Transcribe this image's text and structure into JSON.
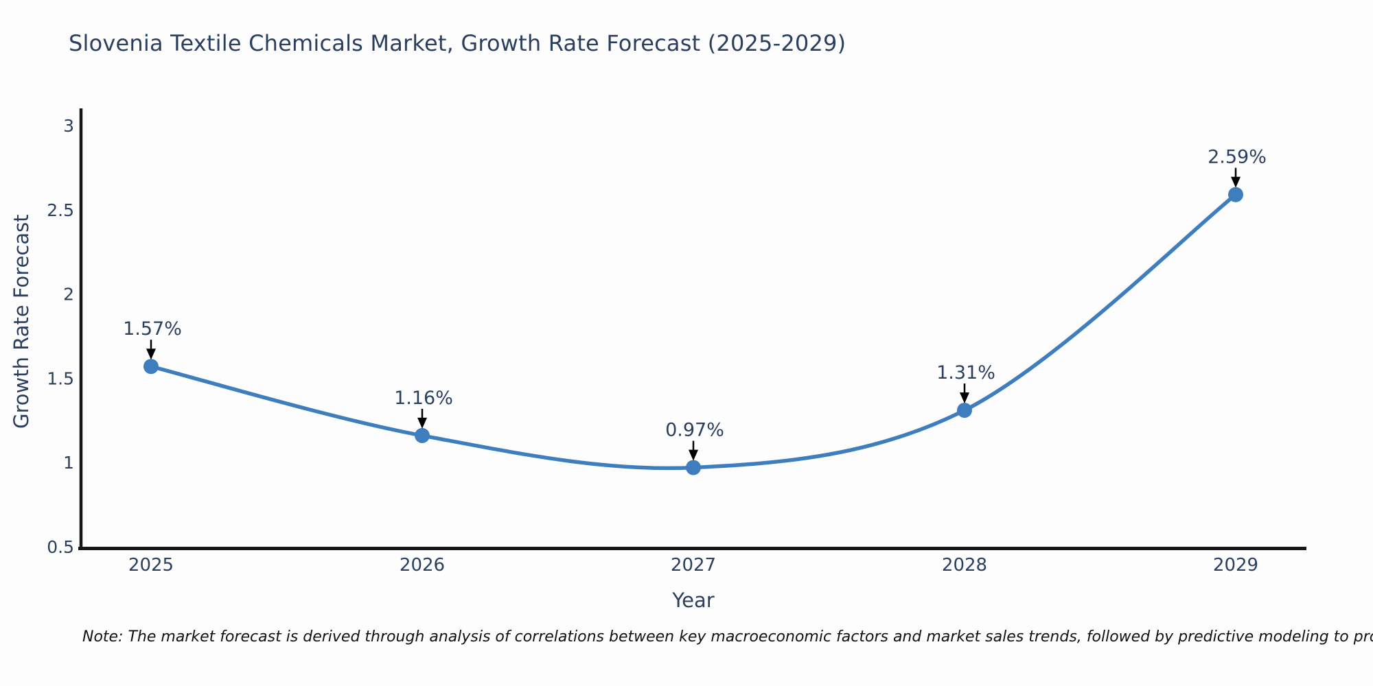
{
  "page": {
    "title": "Slovenia Textile Chemicals Market, Growth Rate Forecast (2025-2029)",
    "note": "Note: The market forecast is derived through analysis of correlations between key macroeconomic factors and market sales trends, followed by predictive modeling to project future sales"
  },
  "chart_data": {
    "type": "line",
    "title": "Slovenia Textile Chemicals Market, Growth Rate Forecast (2025-2029)",
    "xlabel": "Year",
    "ylabel": "Growth Rate Forecast",
    "categories": [
      "2025",
      "2026",
      "2027",
      "2028",
      "2029"
    ],
    "values": [
      1.57,
      1.16,
      0.97,
      1.31,
      2.59
    ],
    "point_labels": [
      "1.57%",
      "1.16%",
      "0.97%",
      "1.31%",
      "2.59%"
    ],
    "yticks": [
      "0.5",
      "1",
      "1.5",
      "2",
      "2.5",
      "3"
    ],
    "ylim": [
      0.5,
      3
    ],
    "grid": false,
    "legend": false,
    "line_color": "#3E7EBE",
    "marker_color": "#3E7EBE",
    "axis_color": "#161616",
    "text_color": "#2a3f5f",
    "arrow_color": "#000000"
  }
}
